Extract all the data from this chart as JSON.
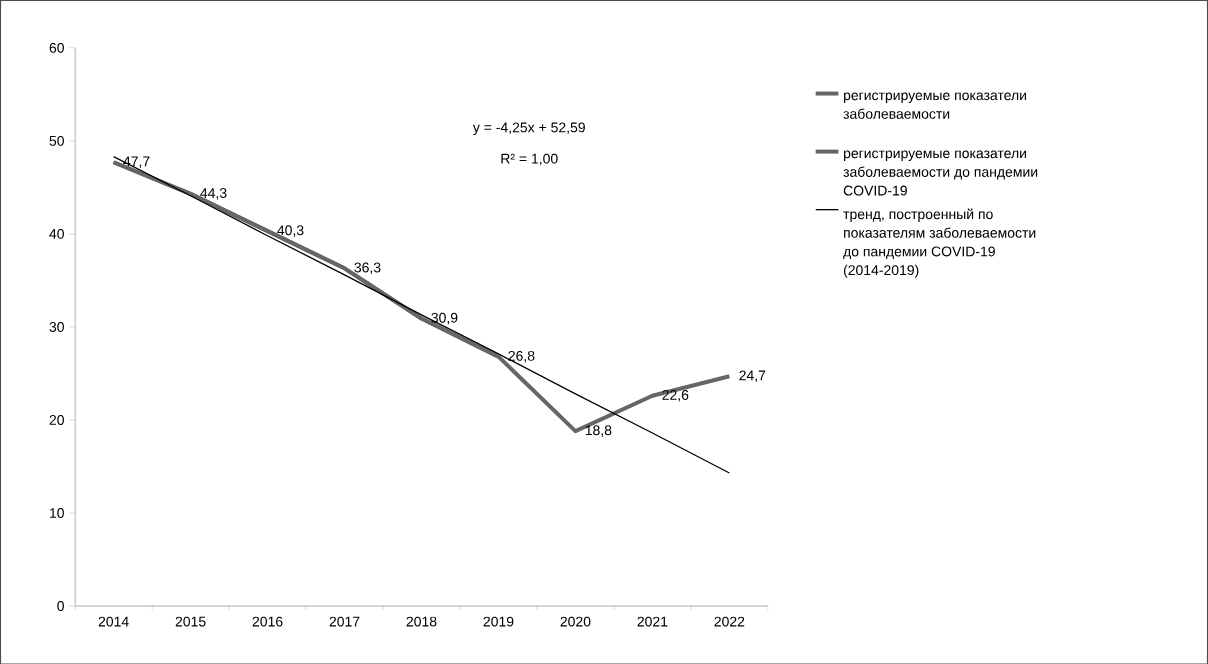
{
  "chart_data": {
    "type": "line",
    "categories": [
      "2014",
      "2015",
      "2016",
      "2017",
      "2018",
      "2019",
      "2020",
      "2021",
      "2022"
    ],
    "series": [
      {
        "name": "регистрируемые показатели заболеваемости",
        "color": "#666666",
        "values": [
          47.7,
          44.3,
          40.3,
          36.3,
          30.9,
          26.8,
          18.8,
          22.6,
          24.7
        ],
        "value_labels": [
          "47,7",
          "44,3",
          "40,3",
          "36,3",
          "30,9",
          "26,8",
          "18,8",
          "22,6",
          "24,7"
        ]
      },
      {
        "name": "регистрируемые показатели заболеваемости до пандемии COVID-19",
        "color": "#666666",
        "values": [
          47.7,
          44.3,
          40.3,
          36.3,
          30.9,
          26.8,
          null,
          null,
          null
        ]
      },
      {
        "name": "тренд, построенный по показателям заболеваемости до пандемии COVID-19 (2014-2019)",
        "color": "#000000",
        "values": [
          48.3,
          44.1,
          39.8,
          35.6,
          31.3,
          27.1,
          22.8,
          18.6,
          14.3
        ]
      }
    ],
    "ylim": [
      0,
      60
    ],
    "yticks": [
      0,
      10,
      20,
      30,
      40,
      50,
      60
    ],
    "legend": "right",
    "marker": "none",
    "line_style": "solid",
    "annotations": [
      "y = -4,25x + 52,59",
      "R² = 1,00"
    ]
  }
}
